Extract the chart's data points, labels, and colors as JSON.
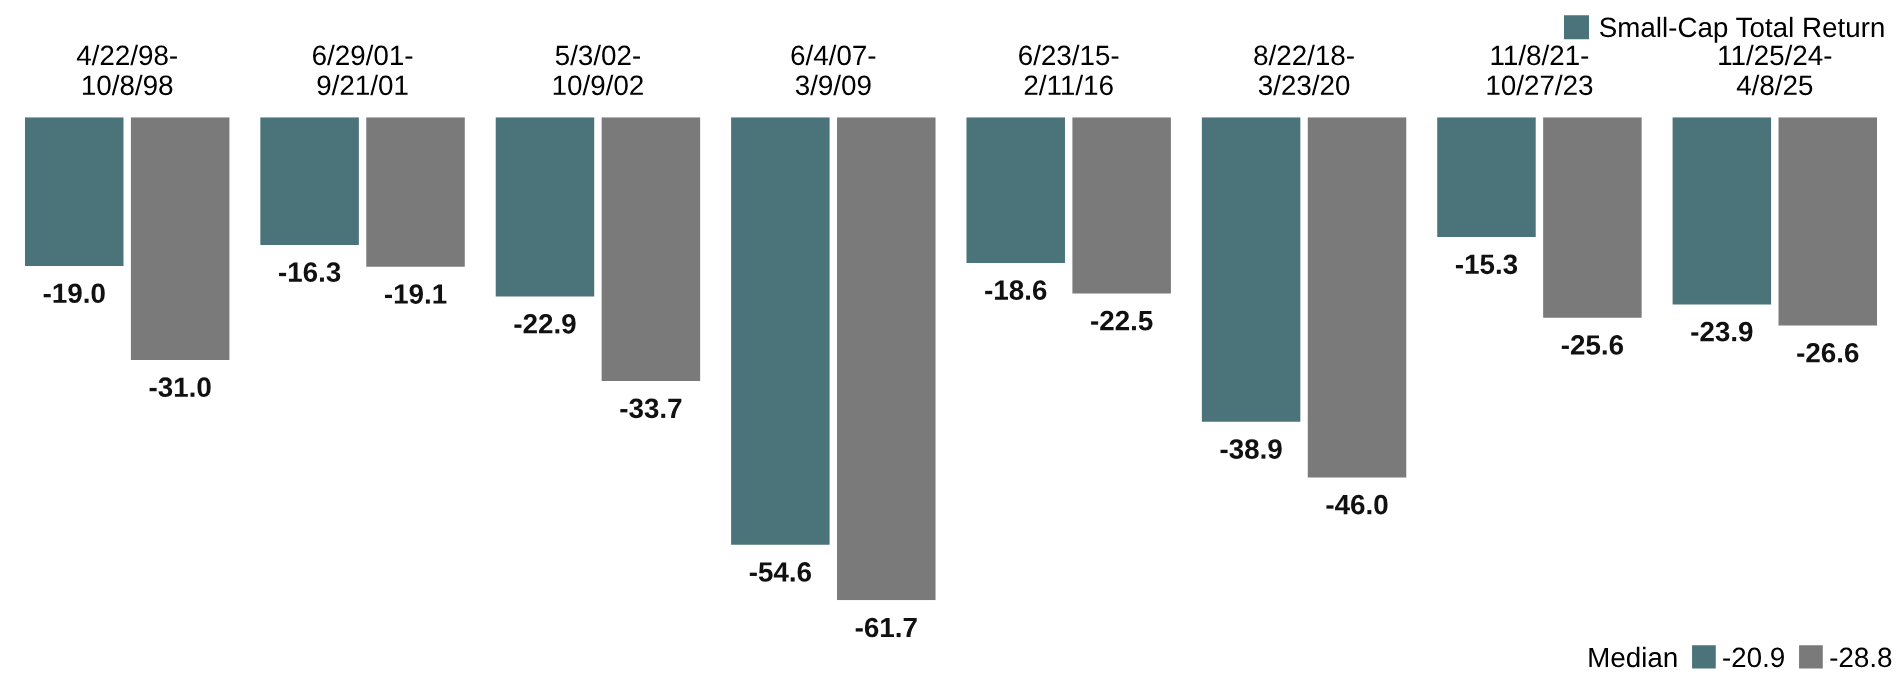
{
  "chart_data": {
    "type": "bar",
    "categories": [
      "4/22/98-\n10/8/98",
      "6/29/01-\n9/21/01",
      "5/3/02-\n10/9/02",
      "6/4/07-\n3/9/09",
      "6/23/15-\n2/11/16",
      "8/22/18-\n3/23/20",
      "11/8/21-\n10/27/23",
      "11/25/24-\n4/8/25"
    ],
    "series": [
      {
        "name": "Small-Cap Total Return",
        "color": "#4a7479",
        "values": [
          -19.0,
          -16.3,
          -22.9,
          -54.6,
          -18.6,
          -38.9,
          -15.3,
          -23.9
        ],
        "value_labels": [
          "-19.0",
          "-16.3",
          "-22.9",
          "-54.6",
          "-18.6",
          "-38.9",
          "-15.3",
          "-23.9"
        ]
      },
      {
        "color": "#7a7a7a",
        "values": [
          -31.0,
          -19.1,
          -33.7,
          -61.7,
          -22.5,
          -46.0,
          -25.6,
          -26.6
        ],
        "value_labels": [
          "-31.0",
          "-19.1",
          "-33.7",
          "-61.7",
          "-22.5",
          "-46.0",
          "-25.6",
          "-26.6"
        ]
      }
    ],
    "legend": "top right",
    "grid": false,
    "annotations": [
      "Median",
      "-20.9",
      "-28.8"
    ]
  }
}
